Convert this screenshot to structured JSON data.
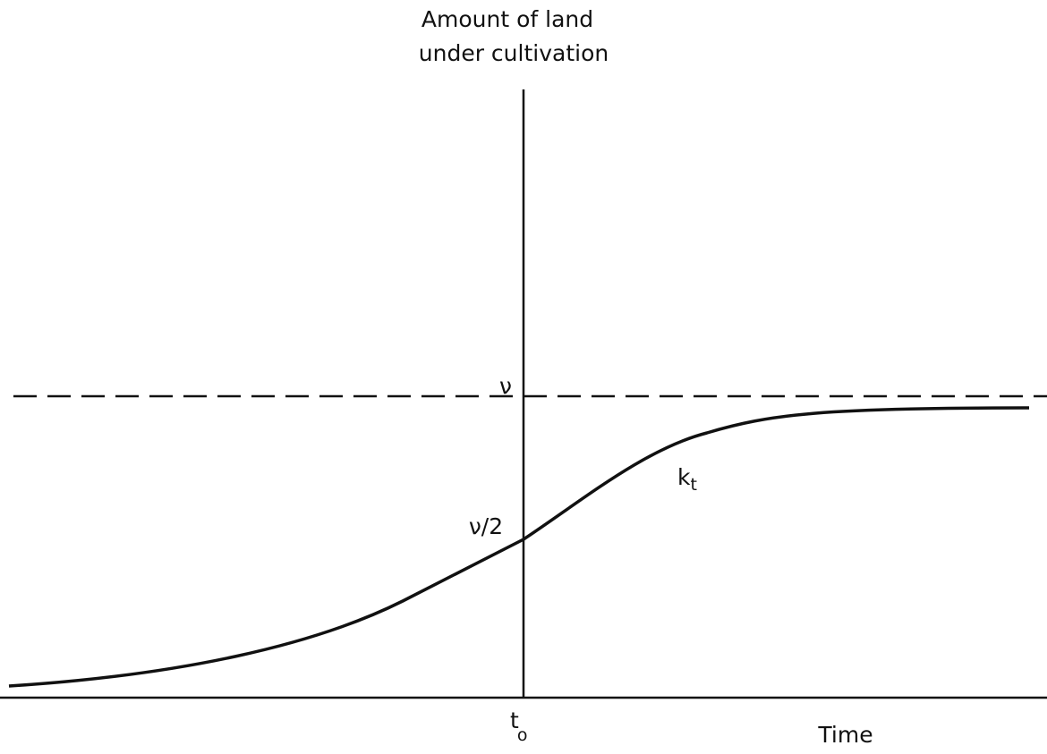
{
  "axis_label": {
    "line1": "Amount of land",
    "line2": "under cultivation"
  },
  "labels": {
    "upper": "ν",
    "half": "ν/2",
    "curve": {
      "text": "k",
      "subscript": "t"
    },
    "origin": {
      "text": "t",
      "subscript": "o"
    },
    "time": "Time"
  }
}
